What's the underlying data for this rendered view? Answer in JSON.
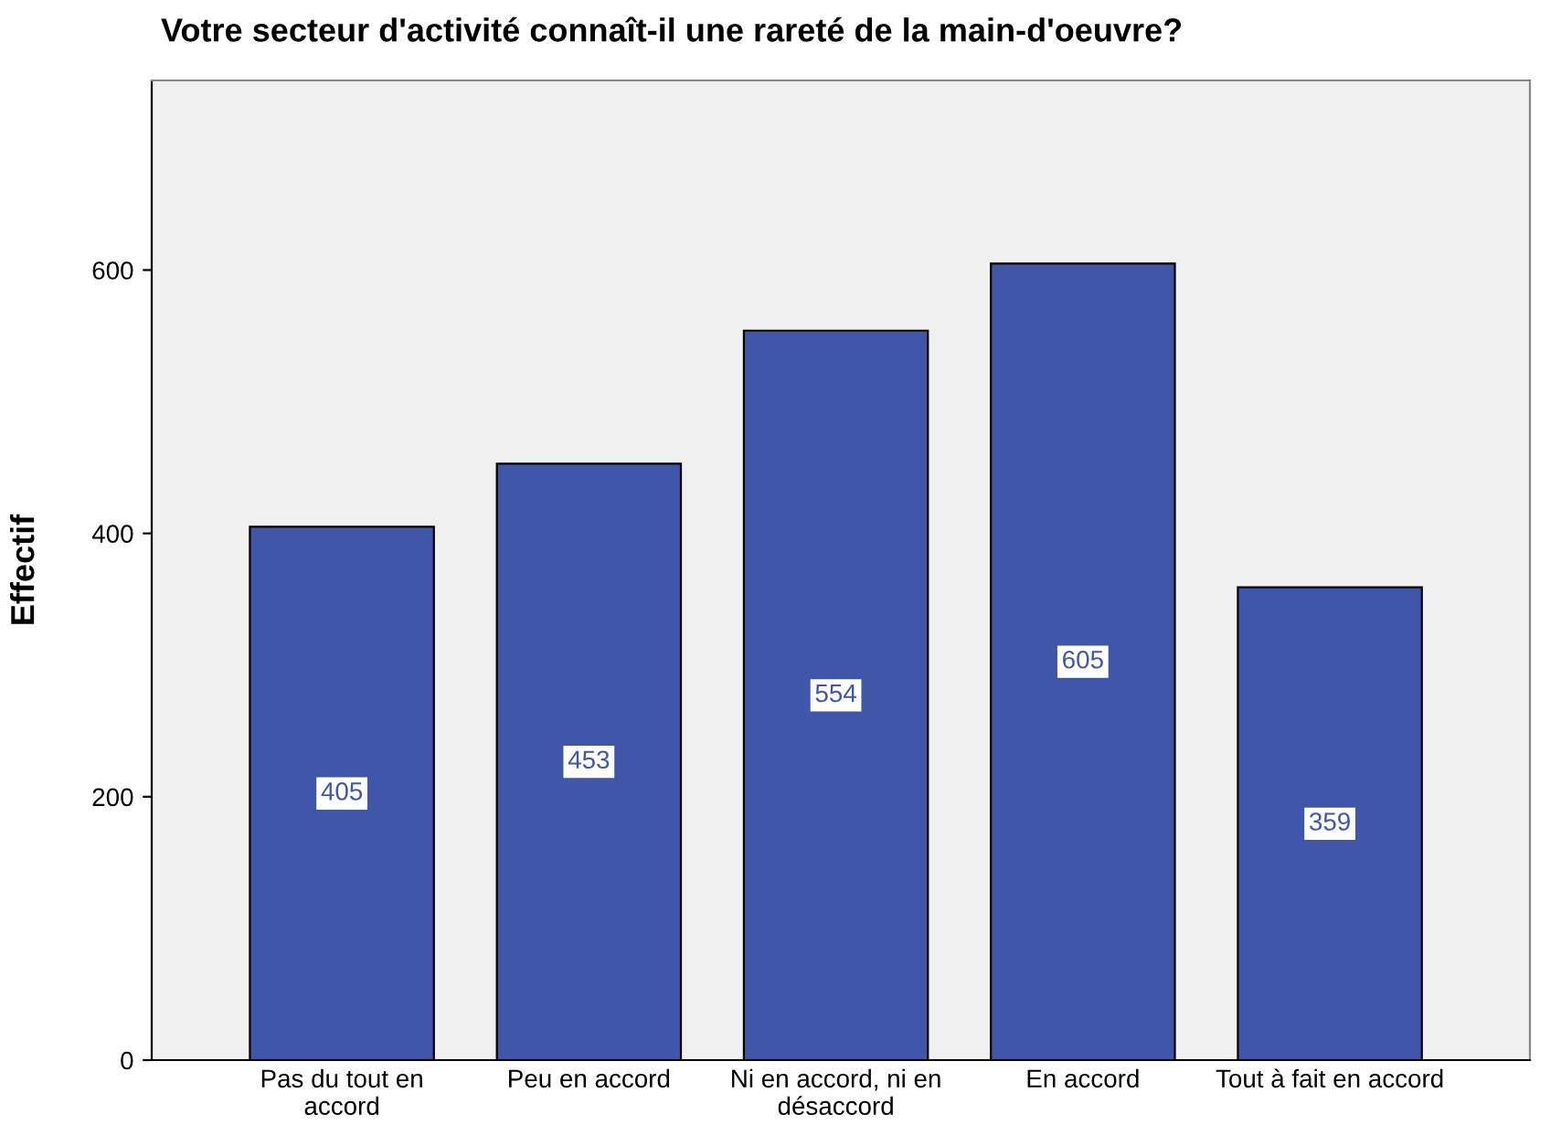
{
  "chart_data": {
    "type": "bar",
    "title": "Votre secteur d'activité connaît-il une rareté de la main-d'oeuvre?",
    "ylabel": "Effectif",
    "categories": [
      "Pas du tout en\naccord",
      "Peu en accord",
      "Ni en accord, ni en\ndésaccord",
      "En accord",
      "Tout à fait en accord"
    ],
    "values": [
      405,
      453,
      554,
      605,
      359
    ],
    "color": "#3f56a9",
    "ylim": [
      0,
      744
    ],
    "yticks": [
      0,
      200,
      400,
      600
    ],
    "data_labels": true,
    "grid": false
  }
}
